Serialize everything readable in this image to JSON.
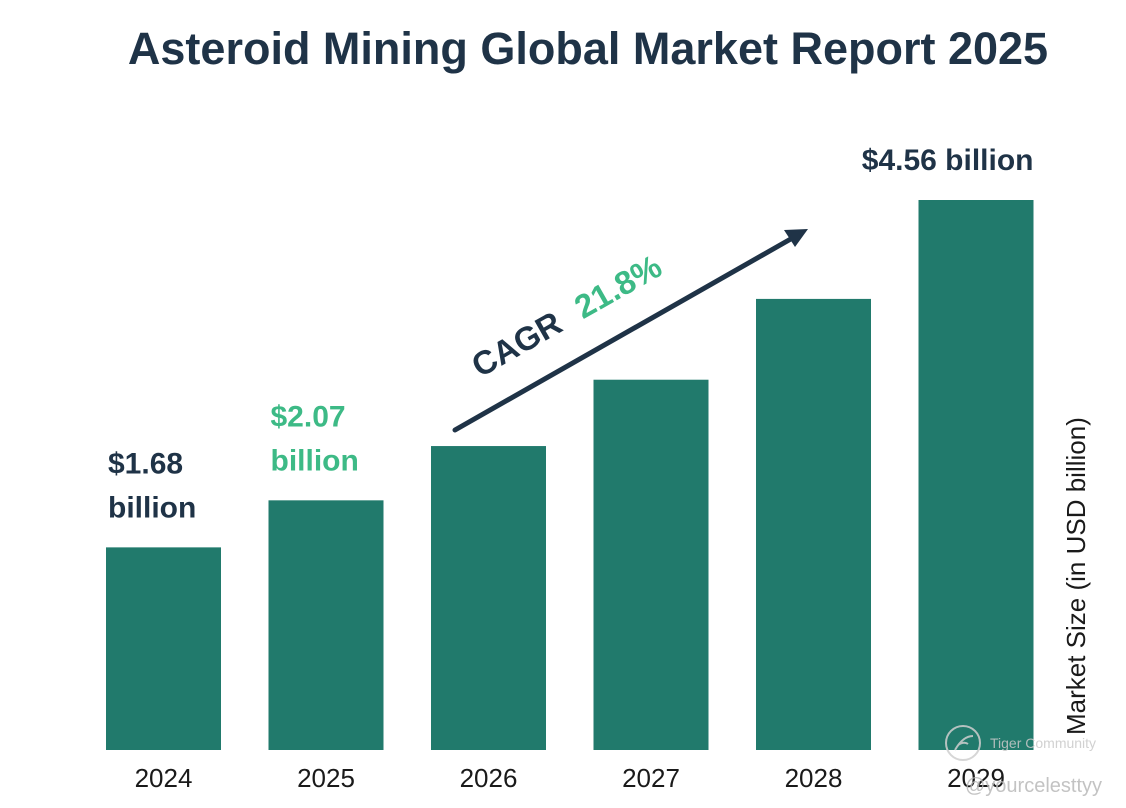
{
  "colors": {
    "bar": "#217a6c",
    "dark_text": "#1f3347",
    "accent_green": "#3dba86",
    "arrow": "#1f3347"
  },
  "chart_data": {
    "type": "bar",
    "title": "Asteroid Mining Global Market Report 2025",
    "categories": [
      "2024",
      "2025",
      "2026",
      "2027",
      "2028",
      "2029"
    ],
    "values": [
      1.68,
      2.07,
      2.52,
      3.07,
      3.74,
      4.56
    ],
    "ylabel": "Market Size (in USD billion)",
    "ylim": [
      0,
      4.56
    ],
    "grid": false,
    "data_labels": [
      {
        "category": "2024",
        "lines": [
          "$1.68",
          "billion"
        ],
        "color": "dark"
      },
      {
        "category": "2025",
        "lines": [
          "$2.07",
          "billion"
        ],
        "color": "green"
      },
      {
        "category": "2029",
        "lines": [
          "$4.56 billion"
        ],
        "color": "dark"
      }
    ],
    "annotation": {
      "prefix": "CAGR",
      "value": "21.8%"
    }
  },
  "watermark": {
    "brand": "Tiger Community",
    "handle": "@yourcelesttyy"
  }
}
